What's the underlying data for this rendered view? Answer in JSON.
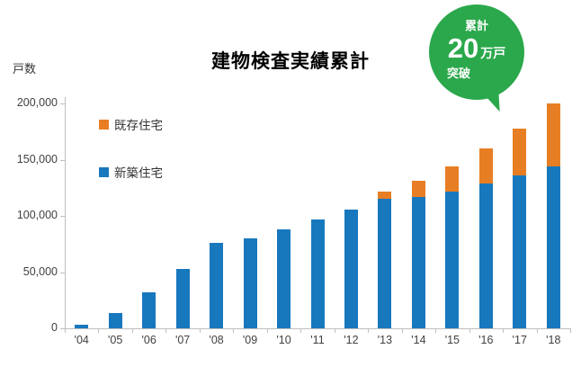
{
  "chart_data": {
    "type": "bar",
    "stacked": true,
    "title": "建物検査実績累計",
    "ylabel": "戸数",
    "xlabel": "",
    "grid": false,
    "legend_position": "inside-top-left",
    "categories": [
      "'04",
      "'05",
      "'06",
      "'07",
      "'08",
      "'09",
      "'10",
      "'11",
      "'12",
      "'13",
      "'14",
      "'15",
      "'16",
      "'17",
      "'18"
    ],
    "series": [
      {
        "name": "新築住宅",
        "color": "#1878be",
        "values": [
          3000,
          14000,
          32000,
          53000,
          76000,
          80000,
          88000,
          97000,
          106000,
          115000,
          117000,
          122000,
          129000,
          136000,
          144000
        ]
      },
      {
        "name": "既存住宅",
        "color": "#e87e23",
        "values": [
          0,
          0,
          0,
          0,
          0,
          0,
          0,
          0,
          0,
          7000,
          14000,
          22000,
          31000,
          42000,
          56000
        ]
      }
    ],
    "ylim": [
      0,
      200000
    ],
    "ytick_step": 50000,
    "ytick_labels": [
      "0",
      "50,000",
      "100,000",
      "150,000",
      "200,000"
    ]
  },
  "callout": {
    "line1": "累計",
    "big_number": "20",
    "unit": "万戸",
    "line3": "突破",
    "color": "#2ba84c"
  }
}
